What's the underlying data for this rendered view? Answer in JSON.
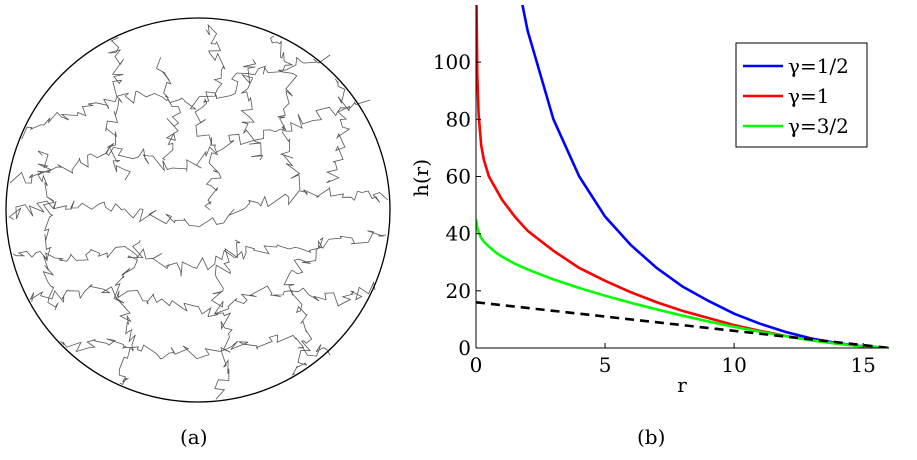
{
  "panel_a": {
    "caption": "(a)"
  },
  "panel_b": {
    "caption": "(b)"
  },
  "chart_data": {
    "type": "line",
    "title": "",
    "xlabel": "r",
    "ylabel": "h(r)",
    "xlim": [
      0,
      16
    ],
    "ylim": [
      0,
      120
    ],
    "xticks": [
      0,
      5,
      10,
      15
    ],
    "yticks": [
      0,
      20,
      40,
      60,
      80,
      100
    ],
    "grid": false,
    "legend_position": "top-right",
    "series": [
      {
        "name": "γ=1/2",
        "color": "#0000ff",
        "x": [
          1.8,
          2,
          3,
          4,
          5,
          6,
          7,
          8,
          9,
          10,
          11,
          12,
          13,
          14,
          15,
          16
        ],
        "y": [
          120,
          111,
          80,
          60,
          46,
          36,
          28,
          21.5,
          16.5,
          12,
          8.5,
          5.6,
          3.3,
          1.7,
          0.6,
          0
        ]
      },
      {
        "name": "γ=1",
        "color": "#ff0000",
        "x": [
          0.02,
          0.05,
          0.1,
          0.2,
          0.3,
          0.5,
          0.75,
          1,
          1.5,
          2,
          3,
          4,
          5,
          6,
          7,
          8,
          9,
          10,
          11,
          12,
          13,
          14,
          15,
          16
        ],
        "y": [
          120,
          96,
          82,
          71,
          66,
          60,
          56,
          52,
          46,
          41,
          34,
          28,
          23.5,
          19.5,
          16,
          13,
          10.5,
          8,
          6,
          4.2,
          2.7,
          1.5,
          0.6,
          0
        ]
      },
      {
        "name": "γ=3/2",
        "color": "#00ff00",
        "x": [
          0,
          0.05,
          0.1,
          0.2,
          0.3,
          0.5,
          0.75,
          1,
          1.5,
          2,
          3,
          4,
          5,
          6,
          7,
          8,
          9,
          10,
          11,
          12,
          13,
          14,
          15,
          16
        ],
        "y": [
          45,
          42,
          40.5,
          38.5,
          37.2,
          35.5,
          33.5,
          32,
          29.5,
          27.5,
          24,
          21,
          18.3,
          15.8,
          13.5,
          11.3,
          9.3,
          7.4,
          5.7,
          4.1,
          2.7,
          1.5,
          0.6,
          0
        ]
      },
      {
        "name": "",
        "color": "#000000",
        "dashed": true,
        "x": [
          0,
          16
        ],
        "y": [
          16,
          0
        ]
      }
    ]
  }
}
